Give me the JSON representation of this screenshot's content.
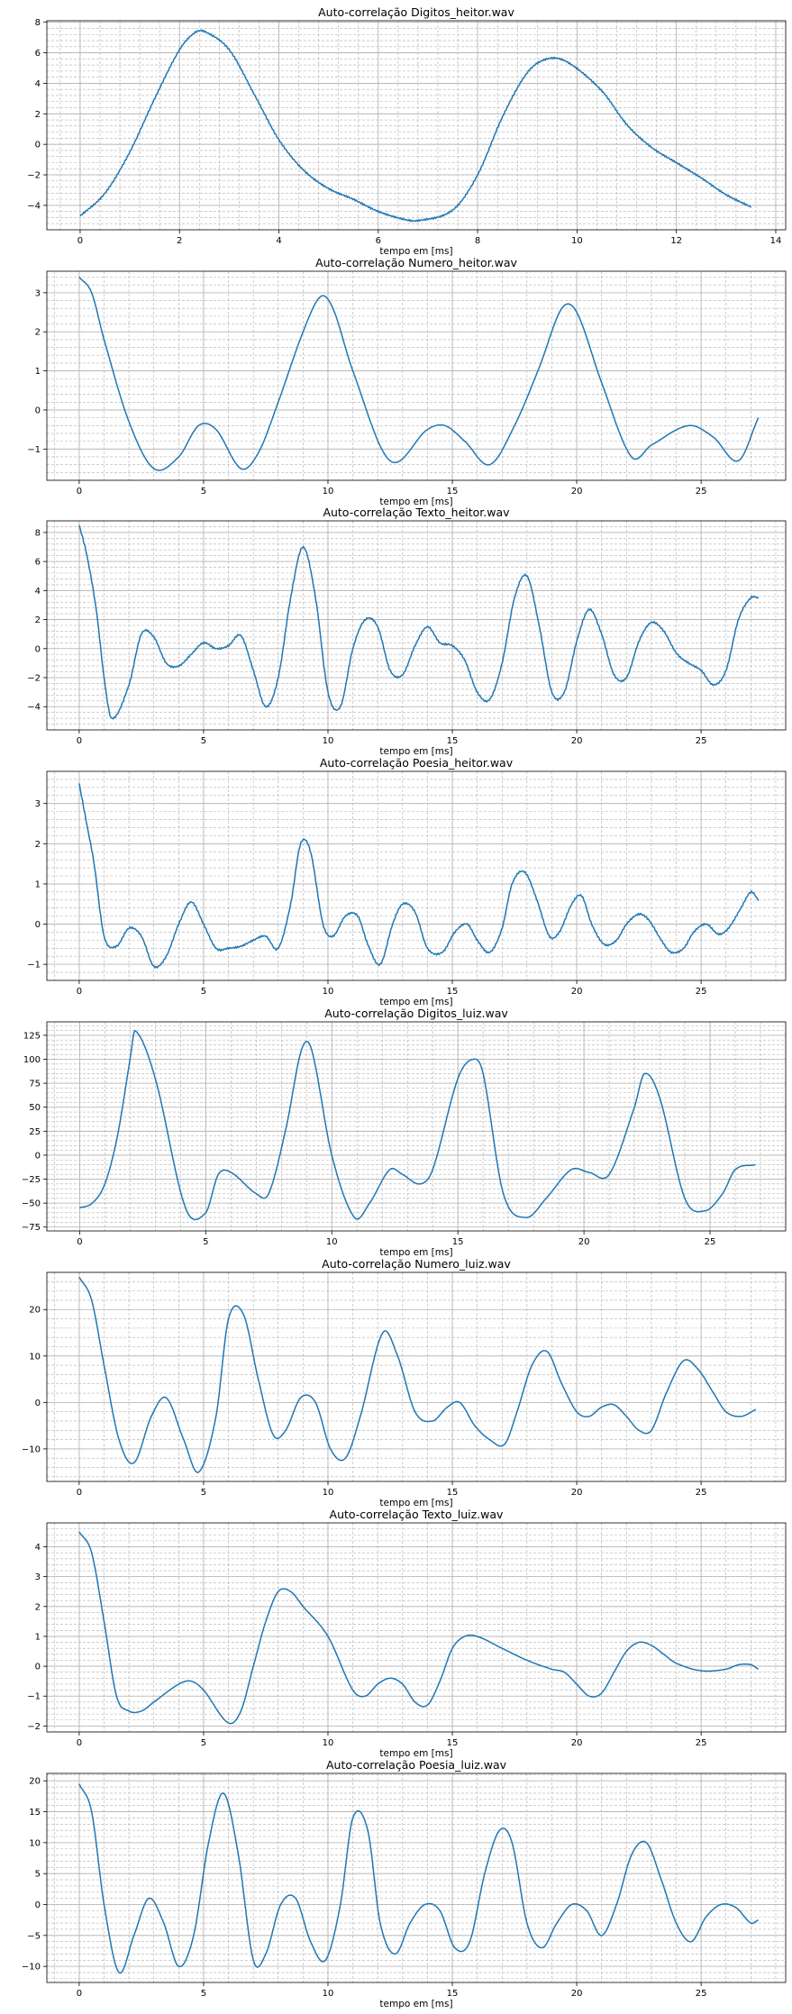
{
  "chart_data": [
    {
      "type": "line",
      "title": "Auto-correlação Digitos_heitor.wav",
      "xlabel": "tempo em [ms]",
      "xlim": [
        -0.67,
        14.2
      ],
      "ylim": [
        -5.6,
        8.1
      ],
      "xticks": [
        0,
        2,
        4,
        6,
        8,
        10,
        12,
        14
      ],
      "yticks": [
        -4,
        -2,
        0,
        2,
        4,
        6,
        8
      ],
      "grid": true,
      "grid_minor": true,
      "series": [
        {
          "color": "#1f77b4",
          "x": [
            0,
            0.5,
            1,
            1.5,
            2,
            2.3,
            2.5,
            3,
            3.5,
            4,
            4.5,
            5,
            5.5,
            6,
            6.5,
            6.8,
            7.5,
            8,
            8.5,
            9,
            9.4,
            9.8,
            10.5,
            11,
            11.5,
            12,
            12.5,
            13,
            13.5
          ],
          "y": [
            -4.7,
            -3.2,
            -0.5,
            3.0,
            6.2,
            7.3,
            7.4,
            6.2,
            3.3,
            0.3,
            -1.7,
            -2.9,
            -3.6,
            -4.4,
            -4.9,
            -5.0,
            -4.3,
            -2.0,
            1.8,
            4.7,
            5.6,
            5.4,
            3.5,
            1.3,
            -0.2,
            -1.2,
            -2.2,
            -3.3,
            -4.1
          ],
          "noise": true
        }
      ]
    },
    {
      "type": "line",
      "title": "Auto-correlação Numero_heitor.wav",
      "xlabel": "tempo em [ms]",
      "xlim": [
        -1.3,
        28.4
      ],
      "ylim": [
        -1.8,
        3.55
      ],
      "xticks": [
        0,
        5,
        10,
        15,
        20,
        25
      ],
      "yticks": [
        -1,
        0,
        1,
        2,
        3
      ],
      "grid": true,
      "grid_minor": true,
      "series": [
        {
          "color": "#1f77b4",
          "x": [
            0,
            0.5,
            1,
            2,
            3,
            4,
            4.8,
            5.5,
            6.5,
            7.2,
            8,
            9,
            9.7,
            10.2,
            11,
            12.5,
            14,
            14.7,
            15.5,
            16.5,
            17.5,
            18.5,
            19.4,
            20,
            21,
            22.2,
            23,
            24.5,
            25.5,
            26.5,
            27.3
          ],
          "y": [
            3.4,
            3.0,
            1.8,
            -0.3,
            -1.5,
            -1.2,
            -0.4,
            -0.5,
            -1.5,
            -1.1,
            0.2,
            2.0,
            2.9,
            2.6,
            1.0,
            -1.3,
            -0.5,
            -0.4,
            -0.8,
            -1.4,
            -0.4,
            1.1,
            2.6,
            2.5,
            0.7,
            -1.2,
            -0.9,
            -0.4,
            -0.7,
            -1.3,
            -0.2
          ]
        }
      ]
    },
    {
      "type": "line",
      "title": "Auto-correlação Texto_heitor.wav",
      "xlabel": "tempo em [ms]",
      "xlim": [
        -1.3,
        28.4
      ],
      "ylim": [
        -5.6,
        8.8
      ],
      "xticks": [
        0,
        5,
        10,
        15,
        20,
        25
      ],
      "yticks": [
        -4,
        -2,
        0,
        2,
        4,
        6,
        8
      ],
      "grid": true,
      "grid_minor": true,
      "series": [
        {
          "color": "#1f77b4",
          "x": [
            0,
            0.3,
            0.7,
            1.0,
            1.3,
            2.0,
            2.5,
            3.0,
            3.5,
            4.0,
            4.5,
            5.0,
            5.5,
            6.0,
            6.5,
            7.0,
            7.5,
            8.0,
            8.5,
            9.0,
            9.5,
            10.0,
            10.5,
            11.0,
            11.5,
            12.0,
            12.5,
            13.0,
            13.5,
            14.0,
            14.5,
            15.0,
            15.5,
            16.0,
            16.5,
            17.0,
            17.5,
            18.0,
            18.5,
            19.0,
            19.5,
            20.0,
            20.5,
            21.0,
            21.5,
            22.0,
            22.5,
            23.0,
            23.5,
            24.0,
            24.5,
            25.0,
            25.5,
            26.0,
            26.5,
            27.0,
            27.3
          ],
          "y": [
            8.5,
            6.5,
            2.5,
            -2.0,
            -4.8,
            -2.5,
            1.0,
            0.8,
            -1.0,
            -1.2,
            -0.4,
            0.4,
            0.0,
            0.2,
            0.9,
            -1.5,
            -4.0,
            -2.0,
            3.5,
            7.0,
            3.5,
            -3.0,
            -4.0,
            0.0,
            2.0,
            1.5,
            -1.5,
            -1.8,
            0.2,
            1.5,
            0.4,
            0.2,
            -0.8,
            -3.0,
            -3.5,
            -1.0,
            3.5,
            5.0,
            1.5,
            -3.0,
            -3.0,
            0.5,
            2.7,
            1.0,
            -1.8,
            -2.0,
            0.5,
            1.8,
            1.2,
            -0.3,
            -1.0,
            -1.5,
            -2.5,
            -1.5,
            2.0,
            3.5,
            3.5
          ],
          "noise": true
        }
      ]
    },
    {
      "type": "line",
      "title": "Auto-correlação Poesia_heitor.wav",
      "xlabel": "tempo em [ms]",
      "xlim": [
        -1.3,
        28.4
      ],
      "ylim": [
        -1.4,
        3.8
      ],
      "xticks": [
        0,
        5,
        10,
        15,
        20,
        25
      ],
      "yticks": [
        -1,
        0,
        1,
        2,
        3
      ],
      "grid": true,
      "grid_minor": true,
      "series": [
        {
          "color": "#1f77b4",
          "x": [
            0,
            0.3,
            0.6,
            1.0,
            1.5,
            2.0,
            2.5,
            3.0,
            3.5,
            4.0,
            4.5,
            5.0,
            5.5,
            6.0,
            6.5,
            7.0,
            7.5,
            8.0,
            8.5,
            8.9,
            9.3,
            9.8,
            10.2,
            10.7,
            11.2,
            11.6,
            12.1,
            12.6,
            13.0,
            13.5,
            14.0,
            14.6,
            15.1,
            15.6,
            16.0,
            16.5,
            17.0,
            17.4,
            17.9,
            18.4,
            18.9,
            19.3,
            19.8,
            20.2,
            20.6,
            21.1,
            21.6,
            22.0,
            22.5,
            22.9,
            23.4,
            23.8,
            24.3,
            24.7,
            25.2,
            25.7,
            26.1,
            26.6,
            27.0,
            27.3
          ],
          "y": [
            3.5,
            2.5,
            1.5,
            -0.3,
            -0.55,
            -0.1,
            -0.3,
            -1.05,
            -0.8,
            0.0,
            0.55,
            0.0,
            -0.6,
            -0.6,
            -0.55,
            -0.4,
            -0.3,
            -0.6,
            0.5,
            2.0,
            1.8,
            0.0,
            -0.3,
            0.2,
            0.2,
            -0.5,
            -1.0,
            0.0,
            0.5,
            0.3,
            -0.6,
            -0.7,
            -0.2,
            0.0,
            -0.4,
            -0.7,
            -0.1,
            1.0,
            1.3,
            0.6,
            -0.3,
            -0.2,
            0.5,
            0.7,
            0.0,
            -0.5,
            -0.4,
            0.0,
            0.25,
            0.1,
            -0.4,
            -0.7,
            -0.6,
            -0.2,
            0.0,
            -0.25,
            -0.1,
            0.4,
            0.8,
            0.6
          ],
          "noise": true
        }
      ]
    },
    {
      "type": "line",
      "title": "Auto-correlação Digitos_luiz.wav",
      "xlabel": "tempo em [ms]",
      "xlim": [
        -1.3,
        28.0
      ],
      "ylim": [
        -79,
        139
      ],
      "xticks": [
        0,
        5,
        10,
        15,
        20,
        25
      ],
      "yticks": [
        -75,
        -50,
        -25,
        0,
        25,
        50,
        75,
        100,
        125
      ],
      "grid": true,
      "grid_minor": true,
      "series": [
        {
          "color": "#1f77b4",
          "x": [
            0,
            0.5,
            1.0,
            1.5,
            2.0,
            2.2,
            3.0,
            4.2,
            5.0,
            5.5,
            6.0,
            7.0,
            7.5,
            8.2,
            8.8,
            9.2,
            10.0,
            10.9,
            11.5,
            12.3,
            12.8,
            13.5,
            14.0,
            15.0,
            15.6,
            16.0,
            16.8,
            17.7,
            18.5,
            19.5,
            20.2,
            21.0,
            22.0,
            22.4,
            23.0,
            24.0,
            24.8,
            25.5,
            26.0,
            26.8
          ],
          "y": [
            -55,
            -50,
            -30,
            20,
            100,
            130,
            80,
            -55,
            -60,
            -20,
            -18,
            -40,
            -40,
            30,
            110,
            110,
            0,
            -65,
            -50,
            -15,
            -20,
            -30,
            -15,
            80,
            100,
            85,
            -40,
            -65,
            -45,
            -15,
            -18,
            -20,
            50,
            85,
            60,
            -45,
            -58,
            -40,
            -15,
            -10
          ]
        }
      ]
    },
    {
      "type": "line",
      "title": "Auto-correlação Numero_luiz.wav",
      "xlabel": "tempo em [ms]",
      "xlim": [
        -1.3,
        28.4
      ],
      "ylim": [
        -17,
        28
      ],
      "xticks": [
        0,
        5,
        10,
        15,
        20,
        25
      ],
      "yticks": [
        -10,
        0,
        10,
        20
      ],
      "grid": true,
      "grid_minor": true,
      "series": [
        {
          "color": "#1f77b4",
          "x": [
            0,
            0.5,
            1.0,
            1.6,
            2.2,
            2.9,
            3.5,
            4.2,
            4.8,
            5.5,
            6.0,
            6.6,
            7.2,
            7.8,
            8.3,
            8.9,
            9.5,
            10.1,
            10.7,
            11.3,
            12.2,
            12.8,
            13.5,
            14.2,
            14.8,
            15.3,
            15.9,
            16.5,
            17.1,
            17.6,
            18.2,
            18.8,
            19.4,
            20.0,
            20.5,
            21.0,
            21.5,
            22.0,
            22.5,
            23.0,
            23.6,
            24.3,
            24.9,
            25.5,
            26.0,
            26.6,
            27.2
          ],
          "y": [
            27,
            22,
            8,
            -8,
            -13,
            -3,
            1,
            -8,
            -15,
            -3,
            18,
            19,
            5,
            -7,
            -6,
            1,
            0,
            -10,
            -12,
            -3,
            15,
            10,
            -2,
            -4,
            -1,
            0,
            -5,
            -8,
            -9,
            -2,
            8,
            11,
            4,
            -2,
            -3,
            -1,
            -0.5,
            -3,
            -6,
            -6,
            2,
            9,
            7,
            2,
            -2,
            -3,
            -1.5
          ]
        }
      ]
    },
    {
      "type": "line",
      "title": "Auto-correlação Texto_luiz.wav",
      "xlabel": "tempo em [ms]",
      "xlim": [
        -1.3,
        28.4
      ],
      "ylim": [
        -2.2,
        4.8
      ],
      "xticks": [
        0,
        5,
        10,
        15,
        20,
        25
      ],
      "yticks": [
        -2,
        -1,
        0,
        1,
        2,
        3,
        4
      ],
      "grid": true,
      "grid_minor": true,
      "series": [
        {
          "color": "#1f77b4",
          "x": [
            0,
            0.5,
            1.0,
            1.5,
            2.0,
            2.5,
            3.0,
            4.0,
            4.5,
            5.0,
            6.0,
            6.5,
            7.0,
            7.5,
            8.0,
            8.5,
            9.0,
            10.0,
            11.0,
            11.5,
            12.0,
            12.5,
            13.0,
            13.5,
            14.0,
            14.5,
            15.0,
            15.5,
            16.0,
            17.0,
            18.0,
            19.0,
            19.5,
            20.0,
            20.5,
            21.0,
            21.5,
            22.0,
            22.5,
            23.0,
            23.5,
            24.0,
            25.0,
            26.0,
            26.5,
            27.0,
            27.3
          ],
          "y": [
            4.5,
            3.8,
            1.5,
            -1.0,
            -1.5,
            -1.5,
            -1.2,
            -0.6,
            -0.5,
            -0.8,
            -1.9,
            -1.5,
            0.0,
            1.5,
            2.5,
            2.5,
            2.0,
            1.0,
            -0.8,
            -1.0,
            -0.6,
            -0.4,
            -0.6,
            -1.2,
            -1.3,
            -0.5,
            0.6,
            1.0,
            1.0,
            0.6,
            0.2,
            -0.1,
            -0.2,
            -0.6,
            -1.0,
            -0.9,
            -0.2,
            0.5,
            0.8,
            0.7,
            0.4,
            0.1,
            -0.15,
            -0.1,
            0.05,
            0.05,
            -0.1
          ]
        }
      ]
    },
    {
      "type": "line",
      "title": "Auto-correlação Poesia_luiz.wav",
      "xlabel": "tempo em [ms]",
      "xlim": [
        -1.3,
        28.4
      ],
      "ylim": [
        -12.6,
        21.2
      ],
      "xticks": [
        0,
        5,
        10,
        15,
        20,
        25
      ],
      "yticks": [
        -10,
        -5,
        0,
        5,
        10,
        15,
        20
      ],
      "grid": true,
      "grid_minor": true,
      "series": [
        {
          "color": "#1f77b4",
          "x": [
            0,
            0.5,
            1.0,
            1.6,
            2.2,
            2.8,
            3.4,
            4.0,
            4.6,
            5.2,
            5.8,
            6.4,
            7.0,
            7.5,
            8.1,
            8.7,
            9.3,
            9.9,
            10.5,
            11.0,
            11.6,
            12.1,
            12.7,
            13.3,
            13.9,
            14.5,
            15.1,
            15.7,
            16.3,
            16.9,
            17.4,
            18.0,
            18.6,
            19.2,
            19.8,
            20.4,
            21.0,
            21.6,
            22.2,
            22.8,
            23.4,
            24.0,
            24.6,
            25.2,
            25.8,
            26.4,
            27.0,
            27.3
          ],
          "y": [
            19.5,
            15,
            0,
            -11,
            -5,
            1,
            -3,
            -10,
            -5,
            10,
            18,
            8,
            -9,
            -8,
            0,
            1,
            -6,
            -9,
            0,
            14,
            12,
            -3,
            -8,
            -3,
            0,
            -1,
            -7,
            -6,
            5,
            12,
            10,
            -3,
            -7,
            -3,
            0,
            -1,
            -5,
            0,
            8,
            10,
            4,
            -3,
            -6,
            -2,
            0,
            -0.5,
            -3,
            -2.5
          ]
        }
      ]
    }
  ]
}
